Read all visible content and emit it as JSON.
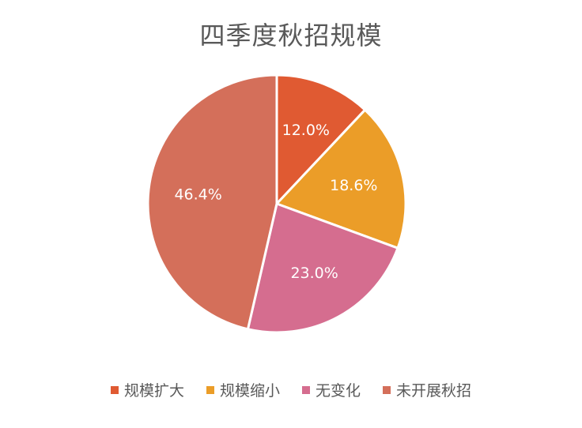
{
  "chart_data": {
    "type": "pie",
    "title": "四季度秋招规模",
    "legend_position": "bottom",
    "categories": [
      "规模扩大",
      "规模缩小",
      "无变化",
      "未开展秋招"
    ],
    "values": [
      12.0,
      18.6,
      23.0,
      46.4
    ],
    "labels": [
      "12.0%",
      "18.6%",
      "23.0%",
      "46.4%"
    ],
    "colors": [
      "#e05a32",
      "#eb9d28",
      "#d56d8f",
      "#d46f5a"
    ]
  }
}
